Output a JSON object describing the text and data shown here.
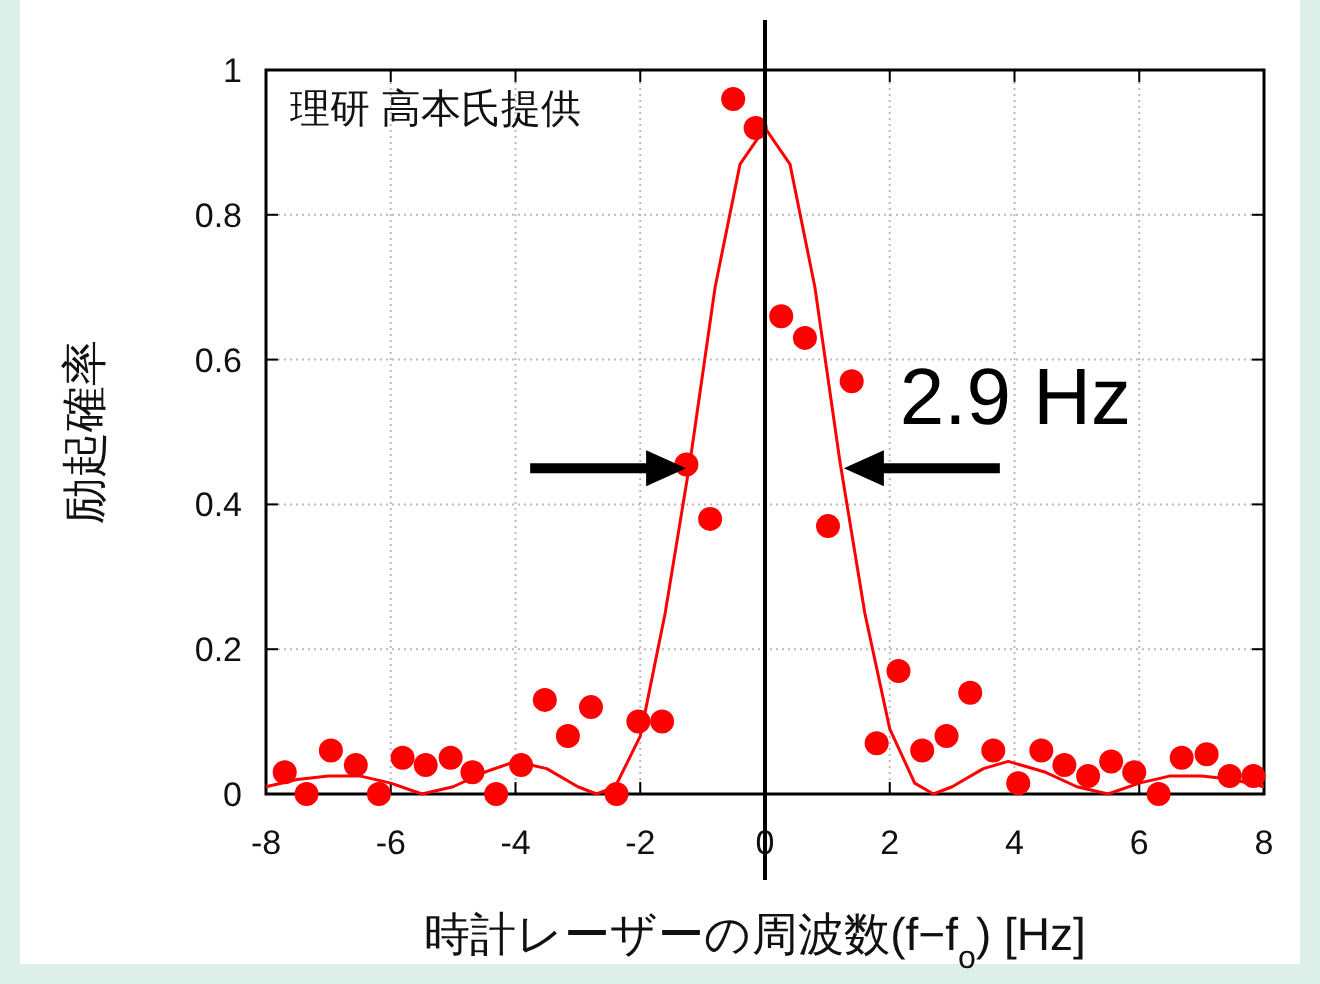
{
  "chart_data": {
    "type": "scatter",
    "xlabel": "時計レーザーの周波数(f−f$_{o}$) [Hz]",
    "ylabel": "励起確率",
    "xlim": [
      -8,
      8
    ],
    "ylim": [
      0,
      1
    ],
    "xticks": [
      -8,
      -6,
      -4,
      -2,
      0,
      2,
      4,
      6,
      8
    ],
    "yticks": [
      0,
      0.2,
      0.4,
      0.6,
      0.8,
      1
    ],
    "grid": true,
    "ref_lines": [
      {
        "axis": "x",
        "value": 0,
        "color": "#000000"
      }
    ],
    "annotations": [
      "理研 高本氏提供",
      {
        "text": "2.9 Hz",
        "x": 1.2,
        "y": 0.45
      }
    ],
    "series": [
      {
        "type": "scatter",
        "marker": "circle",
        "color": "#ff0000",
        "x": [
          -7.7,
          -7.35,
          -6.96,
          -6.56,
          -6.19,
          -5.81,
          -5.44,
          -5.04,
          -4.69,
          -4.31,
          -3.91,
          -3.53,
          -3.16,
          -2.79,
          -2.38,
          -2.03,
          -1.65,
          -1.26,
          -0.88,
          -0.51,
          -0.15,
          0.26,
          0.64,
          1.01,
          1.39,
          1.79,
          2.14,
          2.52,
          2.91,
          3.29,
          3.66,
          4.06,
          4.43,
          4.8,
          5.18,
          5.55,
          5.92,
          6.31,
          6.68,
          7.08,
          7.45,
          7.83
        ],
        "values": [
          0.03,
          0.0,
          0.06,
          0.04,
          0.0,
          0.05,
          0.04,
          0.05,
          0.03,
          0.0,
          0.04,
          0.13,
          0.08,
          0.12,
          0.0,
          0.1,
          0.1,
          0.455,
          0.38,
          0.96,
          0.92,
          0.66,
          0.63,
          0.37,
          0.57,
          0.07,
          0.17,
          0.06,
          0.08,
          0.14,
          0.06,
          0.015,
          0.06,
          0.04,
          0.025,
          0.045,
          0.03,
          0.0,
          0.05,
          0.055,
          0.025,
          0.025
        ]
      },
      {
        "type": "line",
        "color": "#ff0000",
        "x": [
          -8,
          -7.5,
          -7,
          -6.5,
          -6,
          -5.5,
          -5,
          -4.5,
          -4,
          -3.5,
          -3,
          -2.7,
          -2.4,
          -2,
          -1.6,
          -1.2,
          -0.8,
          -0.4,
          0,
          0.4,
          0.8,
          1.2,
          1.6,
          2,
          2.4,
          2.7,
          3,
          3.5,
          3.9,
          4.5,
          5,
          5.5,
          6,
          6.5,
          7,
          7.5,
          8
        ],
        "values": [
          0.01,
          0.02,
          0.025,
          0.025,
          0.015,
          0.0,
          0.01,
          0.03,
          0.045,
          0.035,
          0.01,
          0.0,
          0.01,
          0.08,
          0.25,
          0.46,
          0.7,
          0.87,
          0.92,
          0.87,
          0.7,
          0.46,
          0.25,
          0.09,
          0.015,
          0.0,
          0.01,
          0.035,
          0.045,
          0.03,
          0.01,
          0.0,
          0.015,
          0.025,
          0.025,
          0.02,
          0.01
        ]
      }
    ]
  }
}
